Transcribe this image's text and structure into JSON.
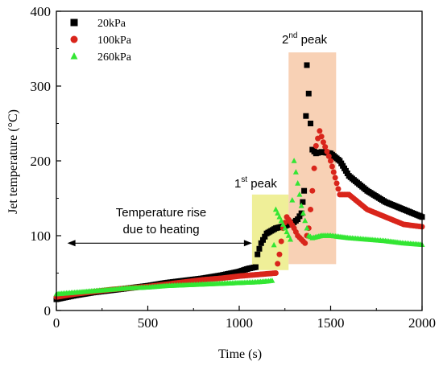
{
  "chart_data": {
    "type": "scatter",
    "xlabel": "Time (s)",
    "ylabel": "Jet temperature (°C)",
    "xlim": [
      0,
      2000
    ],
    "ylim": [
      0,
      400
    ],
    "xticks": [
      "0",
      "500",
      "1000",
      "1500",
      "2000"
    ],
    "yticks": [
      "0",
      "100",
      "200",
      "300",
      "400"
    ],
    "grid": false,
    "legend_position": "top-left",
    "series": [
      {
        "name": "20kPa",
        "marker": "square",
        "color": "#000000",
        "x": [
          0,
          100,
          200,
          300,
          400,
          500,
          600,
          700,
          800,
          900,
          1000,
          1050,
          1090,
          1100,
          1120,
          1150,
          1200,
          1250,
          1300,
          1320,
          1340,
          1355,
          1365,
          1370,
          1380,
          1390,
          1400,
          1420,
          1450,
          1500,
          1550,
          1600,
          1700,
          1800,
          1900,
          2000
        ],
        "y": [
          15,
          20,
          24,
          27,
          30,
          33,
          37,
          40,
          43,
          47,
          52,
          56,
          58,
          75,
          90,
          103,
          110,
          113,
          118,
          122,
          130,
          160,
          260,
          328,
          290,
          250,
          215,
          210,
          212,
          210,
          200,
          180,
          160,
          145,
          135,
          125
        ]
      },
      {
        "name": "100kPa",
        "marker": "circle",
        "color": "#d9251b",
        "x": [
          0,
          100,
          200,
          300,
          400,
          500,
          600,
          700,
          800,
          900,
          1000,
          1100,
          1150,
          1200,
          1220,
          1240,
          1260,
          1280,
          1300,
          1320,
          1340,
          1360,
          1380,
          1400,
          1420,
          1440,
          1460,
          1500,
          1550,
          1600,
          1700,
          1800,
          1900,
          2000
        ],
        "y": [
          18,
          22,
          25,
          28,
          30,
          32,
          35,
          38,
          41,
          43,
          46,
          48,
          49,
          50,
          75,
          110,
          125,
          118,
          110,
          100,
          95,
          90,
          110,
          160,
          220,
          240,
          225,
          200,
          155,
          155,
          135,
          125,
          115,
          112
        ]
      },
      {
        "name": "260kPa",
        "marker": "triangle",
        "color": "#33e633",
        "x": [
          0,
          100,
          200,
          300,
          400,
          500,
          600,
          700,
          800,
          900,
          1000,
          1100,
          1150,
          1180,
          1200,
          1230,
          1260,
          1280,
          1300,
          1320,
          1340,
          1360,
          1380,
          1400,
          1450,
          1500,
          1600,
          1700,
          1800,
          1900,
          2000
        ],
        "y": [
          22,
          24,
          26,
          28,
          30,
          31,
          33,
          34,
          35,
          36,
          37,
          38,
          39,
          40,
          135,
          120,
          105,
          95,
          200,
          170,
          140,
          120,
          100,
          97,
          100,
          100,
          97,
          95,
          93,
          90,
          88
        ]
      }
    ],
    "annotations": {
      "rise_line1": "Temperature rise",
      "rise_line2": "due to heating",
      "first_peak_num": "1",
      "first_peak_sup": "st",
      "first_peak_word": " peak",
      "second_peak_num": "2",
      "second_peak_sup": "nd",
      "second_peak_word": " peak"
    },
    "regions": [
      {
        "name": "first-peak",
        "x": [
          1070,
          1270
        ],
        "y": [
          54,
          155
        ],
        "color": "#ecec86"
      },
      {
        "name": "second-peak",
        "x": [
          1270,
          1530
        ],
        "y": [
          62,
          345
        ],
        "color": "#f7c9a8"
      }
    ],
    "arrow": {
      "x": [
        60,
        1070
      ],
      "y": 90
    }
  }
}
